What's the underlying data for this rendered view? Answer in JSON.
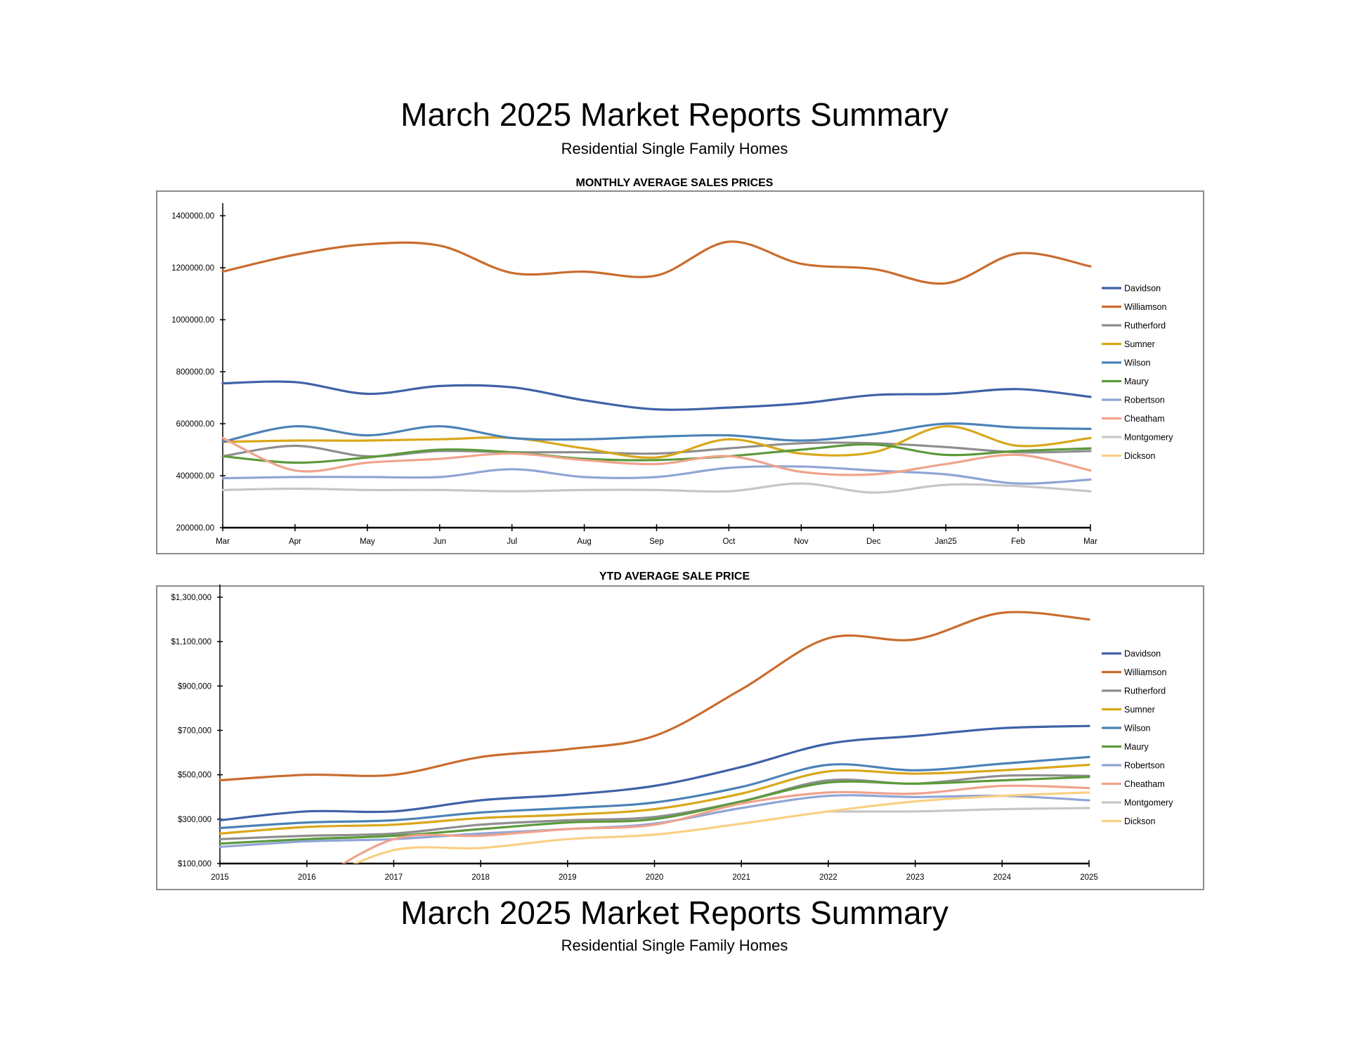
{
  "page": {
    "title": "March 2025 Market Reports Summary",
    "subtitle": "Residential Single Family Homes",
    "footer_title": "March 2025 Market Reports Summary",
    "footer_subtitle": "Residential Single Family Homes"
  },
  "series_colors": {
    "Davidson": "#3E62A6",
    "Williamson": "#CA6C2E",
    "Rutherford": "#8E8E8E",
    "Sumner": "#D9A71A",
    "Wilson": "#4B82B7",
    "Maury": "#5B9A3B",
    "Robertson": "#8FA5D5",
    "Cheatham": "#EFA38C",
    "Montgomery": "#C6C6C6",
    "Dickson": "#F9D084"
  },
  "chart_data": [
    {
      "type": "line",
      "title": "MONTHLY AVERAGE SALES PRICES",
      "xlabel": "",
      "ylabel": "",
      "categories": [
        "Mar",
        "Apr",
        "May",
        "Jun",
        "Jul",
        "Aug",
        "Sep",
        "Oct",
        "Nov",
        "Dec",
        "Jan25",
        "Feb",
        "Mar"
      ],
      "ylim": [
        200000,
        1400000
      ],
      "yticks": [
        200000,
        400000,
        600000,
        800000,
        1000000,
        1200000,
        1400000
      ],
      "ytick_labels": [
        "200000.00",
        "400000.00",
        "600000.00",
        "800000.00",
        "1000000.00",
        "1200000.00",
        "1400000.00"
      ],
      "legend": "right",
      "grid": false,
      "series": [
        {
          "name": "Davidson",
          "values": [
            755000,
            760000,
            715000,
            745000,
            740000,
            690000,
            655000,
            662000,
            678000,
            710000,
            715000,
            733000,
            703000
          ]
        },
        {
          "name": "Williamson",
          "values": [
            1185000,
            1250000,
            1290000,
            1285000,
            1180000,
            1185000,
            1170000,
            1300000,
            1215000,
            1195000,
            1140000,
            1255000,
            1205000
          ]
        },
        {
          "name": "Rutherford",
          "values": [
            475000,
            515000,
            475000,
            495000,
            490000,
            490000,
            485000,
            505000,
            525000,
            525000,
            510000,
            490000,
            495000
          ]
        },
        {
          "name": "Sumner",
          "values": [
            530000,
            535000,
            535000,
            540000,
            545000,
            505000,
            470000,
            540000,
            485000,
            490000,
            590000,
            515000,
            545000
          ]
        },
        {
          "name": "Wilson",
          "values": [
            530000,
            590000,
            555000,
            590000,
            545000,
            540000,
            550000,
            555000,
            535000,
            560000,
            600000,
            585000,
            580000
          ]
        },
        {
          "name": "Maury",
          "values": [
            475000,
            450000,
            470000,
            500000,
            490000,
            465000,
            460000,
            475000,
            500000,
            520000,
            480000,
            495000,
            505000
          ]
        },
        {
          "name": "Robertson",
          "values": [
            390000,
            395000,
            395000,
            395000,
            425000,
            395000,
            395000,
            430000,
            435000,
            420000,
            405000,
            370000,
            385000
          ]
        },
        {
          "name": "Cheatham",
          "values": [
            545000,
            420000,
            450000,
            465000,
            485000,
            460000,
            445000,
            475000,
            415000,
            405000,
            445000,
            480000,
            420000
          ]
        },
        {
          "name": "Montgomery",
          "values": [
            345000,
            350000,
            345000,
            345000,
            340000,
            345000,
            345000,
            340000,
            370000,
            335000,
            365000,
            360000,
            340000
          ]
        },
        {
          "name": "Dickson",
          "values": [
            null,
            null,
            null,
            null,
            null,
            null,
            null,
            null,
            null,
            null,
            null,
            null,
            null
          ]
        }
      ]
    },
    {
      "type": "line",
      "title": "YTD AVERAGE SALE PRICE",
      "xlabel": "",
      "ylabel": "",
      "categories": [
        "2015",
        "2016",
        "2017",
        "2018",
        "2019",
        "2020",
        "2021",
        "2022",
        "2023",
        "2024",
        "2025"
      ],
      "ylim": [
        100000,
        1300000
      ],
      "yticks": [
        100000,
        300000,
        500000,
        700000,
        900000,
        1100000,
        1300000
      ],
      "ytick_labels": [
        "$100,000",
        "$300,000",
        "$500,000",
        "$700,000",
        "$900,000",
        "$1,100,000",
        "$1,300,000"
      ],
      "legend": "right",
      "grid": false,
      "series": [
        {
          "name": "Davidson",
          "values": [
            295000,
            335000,
            335000,
            385000,
            410000,
            450000,
            535000,
            640000,
            675000,
            710000,
            720000
          ]
        },
        {
          "name": "Williamson",
          "values": [
            475000,
            500000,
            500000,
            580000,
            615000,
            675000,
            885000,
            1115000,
            1110000,
            1230000,
            1200000
          ]
        },
        {
          "name": "Rutherford",
          "values": [
            210000,
            225000,
            235000,
            275000,
            295000,
            310000,
            380000,
            475000,
            460000,
            495000,
            495000
          ]
        },
        {
          "name": "Sumner",
          "values": [
            235000,
            265000,
            275000,
            305000,
            320000,
            345000,
            415000,
            515000,
            505000,
            520000,
            545000
          ]
        },
        {
          "name": "Wilson",
          "values": [
            260000,
            285000,
            295000,
            330000,
            350000,
            375000,
            445000,
            545000,
            520000,
            550000,
            580000
          ]
        },
        {
          "name": "Maury",
          "values": [
            190000,
            210000,
            225000,
            255000,
            285000,
            300000,
            380000,
            465000,
            460000,
            475000,
            490000
          ]
        },
        {
          "name": "Robertson",
          "values": [
            175000,
            200000,
            210000,
            235000,
            255000,
            280000,
            350000,
            405000,
            400000,
            405000,
            385000
          ]
        },
        {
          "name": "Cheatham",
          "values": [
            null,
            0,
            210000,
            225000,
            255000,
            275000,
            370000,
            420000,
            415000,
            450000,
            440000
          ]
        },
        {
          "name": "Montgomery",
          "values": [
            null,
            null,
            null,
            null,
            null,
            null,
            null,
            335000,
            335000,
            345000,
            350000
          ]
        },
        {
          "name": "Dickson",
          "values": [
            null,
            0,
            160000,
            170000,
            210000,
            230000,
            280000,
            335000,
            380000,
            405000,
            420000
          ]
        }
      ]
    }
  ]
}
